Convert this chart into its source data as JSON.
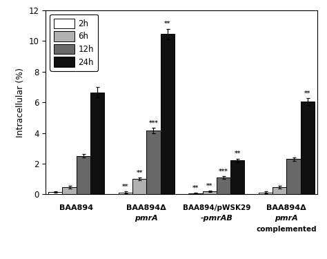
{
  "groups": [
    "BAA894",
    "BAA894Δ\npmrA",
    "BAA894/pWSK29\n-pmrAB",
    "BAA894ΔpmrA\ncomplemented"
  ],
  "time_labels": [
    "2h",
    "6h",
    "12h",
    "24h"
  ],
  "bar_colors": [
    "#ffffff",
    "#b0b0b0",
    "#686868",
    "#101010"
  ],
  "bar_edgecolor": "#000000",
  "values": [
    [
      0.15,
      0.45,
      2.5,
      6.65
    ],
    [
      0.12,
      1.0,
      4.15,
      10.45
    ],
    [
      0.07,
      0.18,
      1.1,
      2.2
    ],
    [
      0.12,
      0.45,
      2.3,
      6.05
    ]
  ],
  "errors": [
    [
      0.05,
      0.08,
      0.12,
      0.35
    ],
    [
      0.05,
      0.1,
      0.18,
      0.35
    ],
    [
      0.03,
      0.05,
      0.08,
      0.12
    ],
    [
      0.05,
      0.08,
      0.12,
      0.22
    ]
  ],
  "annotations": [
    [
      "",
      "",
      "",
      ""
    ],
    [
      "**",
      "**",
      "***",
      "**"
    ],
    [
      "**",
      "**",
      "***",
      "**"
    ],
    [
      "",
      "",
      "",
      "**"
    ]
  ],
  "ylabel": "Intracellular (%)",
  "ylim": [
    0,
    12
  ],
  "yticks": [
    0,
    2,
    4,
    6,
    8,
    10,
    12
  ],
  "background_color": "#ffffff",
  "bar_width": 0.16,
  "group_positions": [
    0.35,
    1.15,
    1.95,
    2.75
  ]
}
